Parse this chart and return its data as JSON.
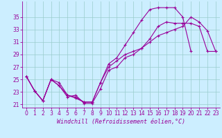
{
  "xlabel": "Windchill (Refroidissement éolien,°C)",
  "bg_color": "#cceeff",
  "line_color": "#990099",
  "grid_color": "#99cccc",
  "xlim": [
    -0.5,
    23.5
  ],
  "ylim": [
    20.5,
    37.5
  ],
  "yticks": [
    21,
    23,
    25,
    27,
    29,
    31,
    33,
    35
  ],
  "xticks": [
    0,
    1,
    2,
    3,
    4,
    5,
    6,
    7,
    8,
    9,
    10,
    11,
    12,
    13,
    14,
    15,
    16,
    17,
    18,
    19,
    20,
    21,
    22,
    23
  ],
  "line1_x": [
    0,
    1,
    2,
    3,
    4,
    5,
    6,
    7,
    8,
    9,
    10,
    11,
    12,
    13,
    14,
    15,
    16,
    17,
    18,
    19,
    20,
    21,
    22,
    23
  ],
  "line1_y": [
    25.5,
    23.2,
    21.6,
    25.0,
    24.0,
    22.2,
    22.5,
    21.2,
    21.2,
    23.5,
    26.5,
    27.0,
    28.5,
    29.0,
    30.0,
    31.5,
    33.5,
    34.2,
    34.0,
    34.0,
    34.0,
    33.5,
    29.5,
    29.5
  ],
  "line2_x": [
    0,
    1,
    2,
    3,
    4,
    5,
    6,
    7,
    8,
    9,
    10,
    11,
    12,
    13,
    14,
    15,
    16,
    17,
    18,
    19,
    20
  ],
  "line2_y": [
    25.5,
    23.2,
    21.6,
    25.0,
    24.0,
    22.5,
    22.2,
    21.4,
    21.4,
    24.5,
    27.5,
    28.5,
    30.5,
    32.5,
    34.5,
    36.2,
    36.5,
    36.5,
    36.5,
    35.0,
    29.5
  ],
  "line3_x": [
    0,
    1,
    2,
    3,
    4,
    5,
    6,
    7,
    8,
    9,
    10,
    11,
    12,
    13,
    14,
    15,
    16,
    17,
    18,
    19,
    20,
    21,
    22,
    23
  ],
  "line3_y": [
    25.5,
    23.2,
    21.6,
    25.0,
    24.5,
    22.5,
    22.0,
    21.4,
    21.4,
    24.5,
    27.0,
    28.0,
    29.0,
    29.5,
    30.0,
    31.0,
    32.0,
    32.5,
    33.0,
    33.5,
    35.0,
    34.2,
    32.8,
    29.5
  ],
  "markersize": 3,
  "linewidth": 0.8,
  "xlabel_fontsize": 6,
  "tick_fontsize": 5.5
}
